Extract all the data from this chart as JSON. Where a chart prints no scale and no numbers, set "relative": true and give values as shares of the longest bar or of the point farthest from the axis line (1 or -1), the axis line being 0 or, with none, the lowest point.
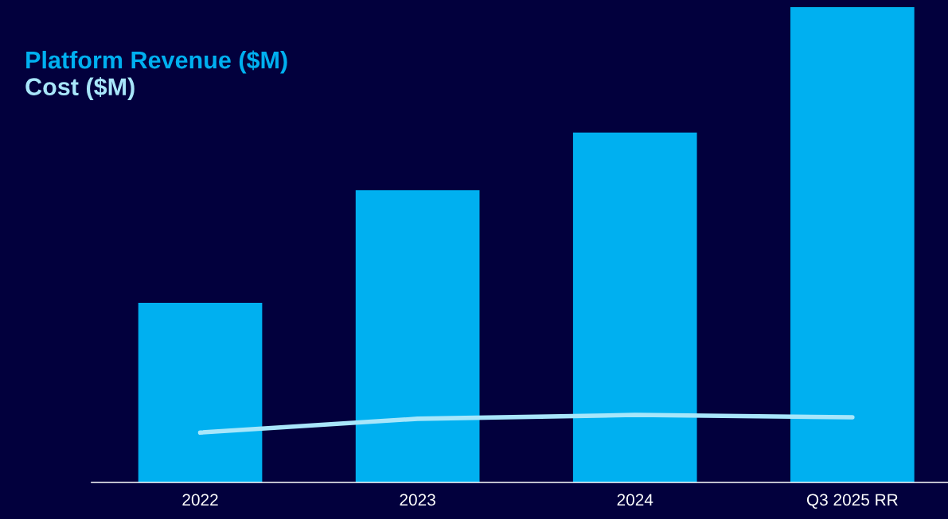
{
  "chart_data": {
    "type": "bar",
    "relative": true,
    "categories": [
      "2022",
      "2023",
      "2024",
      "Q3 2025 RR"
    ],
    "series": [
      {
        "name": "Platform Revenue ($M)",
        "color": "#00b0f0",
        "values": [
          0.378,
          0.615,
          0.736,
          1.0
        ]
      },
      {
        "name": "Cost ($M)",
        "type": "line",
        "color": "#a8e6fa",
        "values": [
          0.105,
          0.134,
          0.142,
          0.137
        ]
      }
    ],
    "legend": "top left",
    "grid": false,
    "marker": "none",
    "line_style": "solid"
  }
}
